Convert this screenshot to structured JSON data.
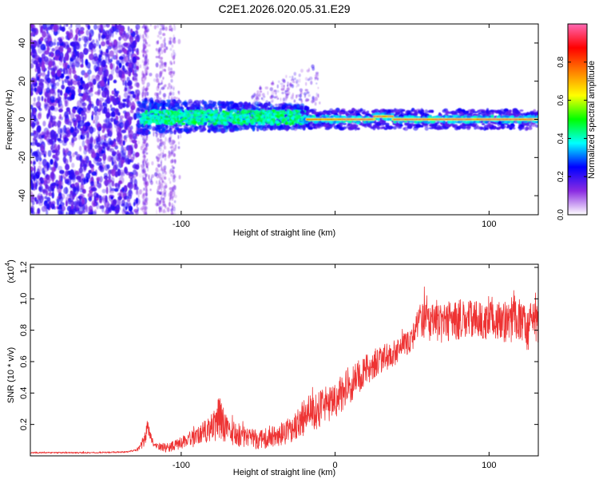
{
  "title": "C2E1.2026.020.05.31.E29",
  "chart_data": [
    {
      "type": "heatmap",
      "name": "spectrogram",
      "xlabel": "Height of straight line (km)",
      "ylabel": "Frequency (Hz)",
      "xlim": [
        -198,
        132
      ],
      "ylim": [
        -50,
        50
      ],
      "xticks": [
        -100,
        0,
        100
      ],
      "xtick_labels": [
        "-100",
        "",
        "100"
      ],
      "yticks": [
        -40,
        -20,
        0,
        20,
        40
      ],
      "ytick_labels": [
        "-40",
        "-20",
        "0",
        "20",
        "40"
      ],
      "colorbar": {
        "label": "Normalized spectral amplitude",
        "range": [
          0,
          1
        ],
        "ticks": [
          0.0,
          0.2,
          0.4,
          0.6,
          0.8
        ],
        "tick_labels": [
          "0.0",
          "0.2",
          "0.4",
          "0.6",
          "0.8"
        ],
        "colors": [
          "#ffffff",
          "#8a2be2",
          "#0000ff",
          "#00ffff",
          "#00ff00",
          "#ffff00",
          "#ff8000",
          "#ff0000",
          "#ff69b4"
        ]
      },
      "regions": [
        {
          "desc": "broadband scatter",
          "x_range": [
            -198,
            -130
          ],
          "freq_range": [
            -50,
            50
          ],
          "amplitude": 0.15
        },
        {
          "desc": "weak noise band",
          "x_range": [
            -130,
            -100
          ],
          "freq_range": [
            -50,
            50
          ],
          "amplitude": 0.05
        },
        {
          "desc": "emerging line",
          "x_range": [
            -130,
            -20
          ],
          "freq_range": [
            -6,
            7
          ],
          "amplitude": 0.4
        },
        {
          "desc": "clean tone",
          "x_range": [
            -20,
            132
          ],
          "freq_range": [
            -3,
            3
          ],
          "amplitude": 0.95
        }
      ]
    },
    {
      "type": "line",
      "name": "snr",
      "xlabel": "Height of straight line (km)",
      "ylabel": "SNR (10 * v/v)",
      "scale_label": "(x10",
      "scale_exponent": "4",
      "xlim": [
        -198,
        132
      ],
      "ylim": [
        0,
        1.22
      ],
      "xticks": [
        -100,
        0,
        100
      ],
      "xtick_labels": [
        "-100",
        "0",
        "100"
      ],
      "yticks": [
        0.2,
        0.4,
        0.6,
        0.8,
        1.0,
        1.2
      ],
      "ytick_labels": [
        "0.2",
        "0.4",
        "0.6",
        "0.8",
        "1.0",
        "1.2"
      ],
      "color": "#ee3333",
      "envelope": {
        "x": [
          -198,
          -160,
          -135,
          -128,
          -124,
          -122,
          -118,
          -110,
          -100,
          -90,
          -80,
          -75,
          -70,
          -60,
          -50,
          -40,
          -30,
          -20,
          -10,
          0,
          10,
          20,
          30,
          40,
          50,
          55,
          60,
          70,
          80,
          90,
          100,
          110,
          120,
          125,
          128,
          132
        ],
        "y": [
          0.02,
          0.02,
          0.025,
          0.04,
          0.09,
          0.18,
          0.07,
          0.05,
          0.08,
          0.12,
          0.17,
          0.25,
          0.16,
          0.12,
          0.1,
          0.12,
          0.16,
          0.25,
          0.3,
          0.36,
          0.45,
          0.55,
          0.62,
          0.66,
          0.74,
          0.87,
          0.85,
          0.84,
          0.86,
          0.87,
          0.86,
          0.85,
          0.87,
          0.78,
          0.86,
          0.85
        ]
      },
      "noise": {
        "x": [
          -198,
          -130,
          -128,
          -124,
          -122,
          -118,
          -100,
          -90,
          -80,
          -75,
          -70,
          -50,
          -30,
          -20,
          0,
          20,
          40,
          50,
          60,
          100,
          120,
          132
        ],
        "amp": [
          0.004,
          0.005,
          0.01,
          0.04,
          0.05,
          0.02,
          0.04,
          0.06,
          0.1,
          0.15,
          0.08,
          0.06,
          0.08,
          0.12,
          0.12,
          0.1,
          0.08,
          0.08,
          0.12,
          0.12,
          0.14,
          0.14
        ]
      }
    }
  ]
}
